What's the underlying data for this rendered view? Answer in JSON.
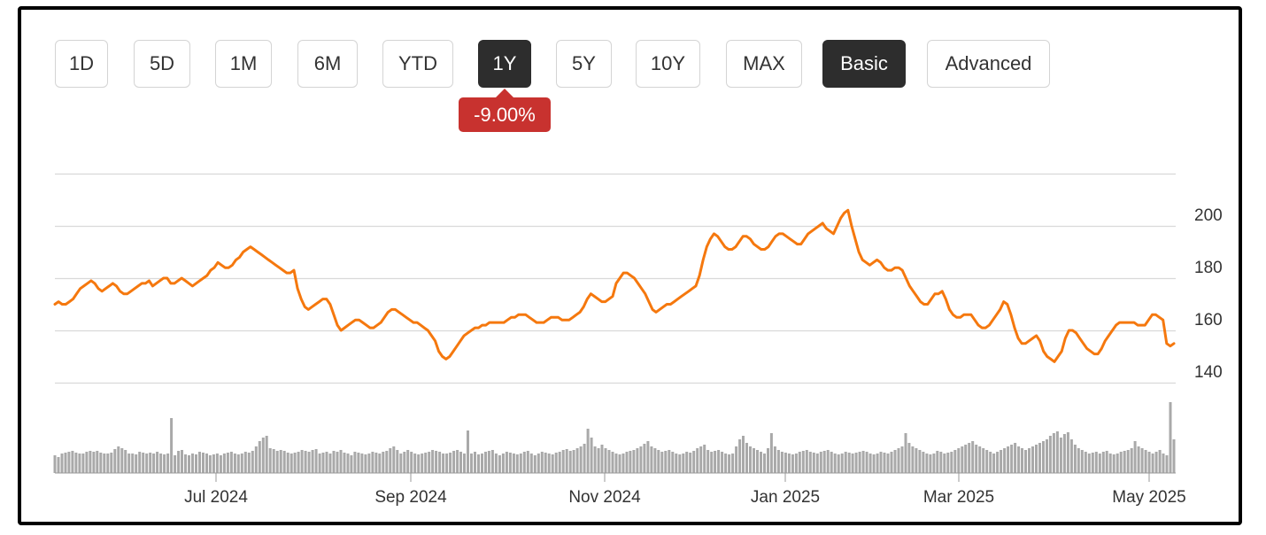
{
  "range_buttons": [
    {
      "id": "1d",
      "label": "1D",
      "active": false
    },
    {
      "id": "5d",
      "label": "5D",
      "active": false
    },
    {
      "id": "1m",
      "label": "1M",
      "active": false
    },
    {
      "id": "6m",
      "label": "6M",
      "active": false
    },
    {
      "id": "ytd",
      "label": "YTD",
      "active": false
    },
    {
      "id": "1y",
      "label": "1Y",
      "active": true
    },
    {
      "id": "5y",
      "label": "5Y",
      "active": false
    },
    {
      "id": "10y",
      "label": "10Y",
      "active": false
    },
    {
      "id": "max",
      "label": "MAX",
      "active": false
    }
  ],
  "mode_buttons": [
    {
      "id": "basic",
      "label": "Basic",
      "active": true
    },
    {
      "id": "advanced",
      "label": "Advanced",
      "active": false
    }
  ],
  "change_badge": {
    "text": "-9.00%",
    "color": "#c8322f"
  },
  "colors": {
    "price_line": "#f5780e",
    "volume_bar": "#a9a9a9",
    "grid": "#d9d9d9",
    "active_button": "#2d2d2d"
  },
  "chart_data": {
    "type": "line",
    "title": "",
    "xlabel": "",
    "ylabel": "",
    "x_ticks": [
      "Jul 2024",
      "Sep 2024",
      "Nov 2024",
      "Jan 2025",
      "Mar 2025",
      "May 2025"
    ],
    "y_ticks": [
      140,
      160,
      180,
      200
    ],
    "ylim": [
      140,
      220
    ],
    "y_axis_position": "right",
    "grid": true,
    "series": [
      {
        "values": [
          170,
          171,
          170,
          170,
          171,
          172,
          174,
          176,
          177,
          178,
          179,
          178,
          176,
          175,
          176,
          177,
          178,
          177,
          175,
          174,
          174,
          175,
          176,
          177,
          178,
          178,
          179,
          177,
          178,
          179,
          180,
          180,
          178,
          178,
          179,
          180,
          179,
          178,
          177,
          178,
          179,
          180,
          181,
          183,
          184,
          186,
          185,
          184,
          184,
          185,
          187,
          188,
          190,
          191,
          192,
          191,
          190,
          189,
          188,
          187,
          186,
          185,
          184,
          183,
          182,
          182,
          183,
          176,
          172,
          169,
          168,
          169,
          170,
          171,
          172,
          172,
          170,
          166,
          162,
          160,
          161,
          162,
          163,
          164,
          164,
          163,
          162,
          161,
          161,
          162,
          163,
          165,
          167,
          168,
          168,
          167,
          166,
          165,
          164,
          163,
          163,
          162,
          161,
          160,
          158,
          156,
          152,
          150,
          149,
          150,
          152,
          154,
          156,
          158,
          159,
          160,
          161,
          161,
          162,
          162,
          163,
          163,
          163,
          163,
          163,
          164,
          165,
          165,
          166,
          166,
          166,
          165,
          164,
          163,
          163,
          163,
          164,
          165,
          165,
          165,
          164,
          164,
          164,
          165,
          166,
          167,
          169,
          172,
          174,
          173,
          172,
          171,
          171,
          172,
          173,
          178,
          180,
          182,
          182,
          181,
          180,
          178,
          176,
          174,
          171,
          168,
          167,
          168,
          169,
          170,
          170,
          171,
          172,
          173,
          174,
          175,
          176,
          177,
          181,
          187,
          192,
          195,
          197,
          196,
          194,
          192,
          191,
          191,
          192,
          194,
          196,
          196,
          195,
          193,
          192,
          191,
          191,
          192,
          194,
          196,
          197,
          197,
          196,
          195,
          194,
          193,
          193,
          195,
          197,
          198,
          199,
          200,
          201,
          199,
          198,
          197,
          200,
          203,
          205,
          206,
          200,
          195,
          190,
          187,
          186,
          185,
          186,
          187,
          186,
          184,
          183,
          183,
          184,
          184,
          183,
          180,
          177,
          175,
          173,
          171,
          170,
          170,
          172,
          174,
          174,
          175,
          172,
          168,
          166,
          165,
          165,
          166,
          166,
          166,
          164,
          162,
          161,
          161,
          162,
          164,
          166,
          168,
          171,
          170,
          166,
          161,
          157,
          155,
          155,
          156,
          157,
          158,
          156,
          152,
          150,
          149,
          148,
          150,
          152,
          157,
          160,
          160,
          159,
          157,
          155,
          153,
          152,
          151,
          151,
          153,
          156,
          158,
          160,
          162,
          163,
          163,
          163,
          163,
          163,
          162,
          162,
          162,
          164,
          166,
          166,
          165,
          164,
          155,
          154,
          155
        ]
      }
    ],
    "volume": [
      20,
      18,
      22,
      23,
      24,
      25,
      23,
      22,
      22,
      24,
      25,
      24,
      25,
      23,
      22,
      22,
      23,
      27,
      30,
      28,
      26,
      22,
      22,
      21,
      24,
      23,
      22,
      23,
      22,
      24,
      22,
      21,
      22,
      62,
      20,
      25,
      26,
      21,
      20,
      22,
      21,
      24,
      23,
      22,
      20,
      21,
      22,
      20,
      22,
      23,
      24,
      22,
      21,
      22,
      24,
      23,
      25,
      30,
      36,
      40,
      42,
      28,
      27,
      25,
      26,
      25,
      23,
      22,
      23,
      24,
      26,
      25,
      24,
      26,
      27,
      22,
      23,
      24,
      22,
      25,
      24,
      26,
      23,
      22,
      20,
      24,
      23,
      22,
      21,
      22,
      24,
      23,
      22,
      24,
      25,
      28,
      30,
      26,
      22,
      24,
      26,
      24,
      22,
      21,
      22,
      23,
      24,
      26,
      25,
      24,
      22,
      22,
      23,
      25,
      26,
      24,
      22,
      48,
      22,
      24,
      21,
      22,
      24,
      25,
      26,
      22,
      20,
      22,
      24,
      23,
      22,
      21,
      22,
      24,
      25,
      22,
      20,
      22,
      24,
      23,
      22,
      21,
      23,
      24,
      26,
      27,
      25,
      26,
      28,
      30,
      33,
      50,
      40,
      30,
      28,
      32,
      28,
      26,
      24,
      22,
      21,
      22,
      24,
      25,
      26,
      28,
      30,
      33,
      36,
      30,
      28,
      26,
      24,
      25,
      26,
      24,
      22,
      21,
      22,
      24,
      23,
      25,
      28,
      30,
      32,
      26,
      24,
      25,
      26,
      24,
      22,
      21,
      22,
      30,
      38,
      42,
      34,
      30,
      28,
      26,
      24,
      22,
      28,
      45,
      30,
      26,
      24,
      23,
      22,
      21,
      22,
      24,
      25,
      26,
      24,
      23,
      22,
      24,
      25,
      26,
      24,
      22,
      21,
      22,
      24,
      23,
      22,
      23,
      24,
      25,
      24,
      22,
      21,
      22,
      24,
      23,
      22,
      24,
      26,
      28,
      30,
      45,
      34,
      30,
      28,
      26,
      24,
      22,
      21,
      22,
      25,
      24,
      22,
      23,
      24,
      26,
      28,
      30,
      32,
      34,
      36,
      32,
      30,
      28,
      26,
      24,
      22,
      24,
      26,
      28,
      30,
      32,
      34,
      30,
      28,
      26,
      28,
      30,
      32,
      34,
      36,
      38,
      42,
      45,
      47,
      40,
      44,
      46,
      38,
      32,
      28,
      26,
      24,
      22,
      23,
      24,
      22,
      24,
      25,
      22,
      21,
      22,
      24,
      25,
      26,
      28,
      36,
      30,
      28,
      26,
      24,
      22,
      24,
      26,
      22,
      20,
      80,
      38
    ]
  }
}
